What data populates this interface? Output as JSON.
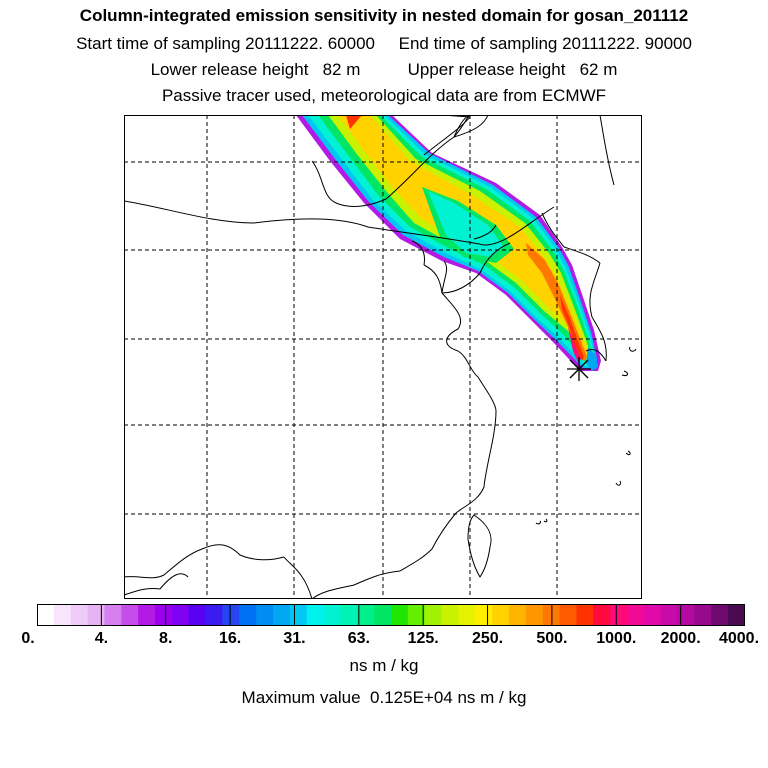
{
  "header": {
    "title": "Column-integrated emission sensitivity in nested domain for gosan_201112",
    "sampling": "Start time of sampling 20111222. 60000     End time of sampling 20111222. 90000",
    "release": "Lower release height   82 m          Upper release height   62 m",
    "tracer": "Passive tracer used, meteorological data are from ECMWF"
  },
  "colorbar": {
    "tick_labels": [
      "0.",
      "4.",
      "8.",
      "16.",
      "31.",
      "63.",
      "125.",
      "250.",
      "500.",
      "1000.",
      "2000.",
      "4000."
    ],
    "unit": "ns m / kg",
    "colors": [
      "#ffffff",
      "#f7e6fb",
      "#efccf7",
      "#e6b3f2",
      "#d580ee",
      "#c64dea",
      "#b31ae6",
      "#9b00ee",
      "#8000f2",
      "#5a00f2",
      "#3c1af2",
      "#2646f2",
      "#0070f2",
      "#008cf2",
      "#00a8f2",
      "#00c8f2",
      "#00f2ee",
      "#00f2d2",
      "#00f2b4",
      "#00ee8c",
      "#00e664",
      "#1ee600",
      "#64ee00",
      "#a0f200",
      "#c8f200",
      "#e6f200",
      "#ffee00",
      "#ffd200",
      "#ffb400",
      "#ff9600",
      "#ff7800",
      "#ff5a00",
      "#ff3200",
      "#ff0a3c",
      "#ff0a78",
      "#f20a96",
      "#e00aa8",
      "#c80aa8",
      "#b40aa0",
      "#960a8c",
      "#6e0a6e",
      "#4a0a50"
    ]
  },
  "max_value": "Maximum value  0.125E+04 ns m / kg",
  "receptor": {
    "name": "gosan",
    "marker": "star-marker"
  }
}
